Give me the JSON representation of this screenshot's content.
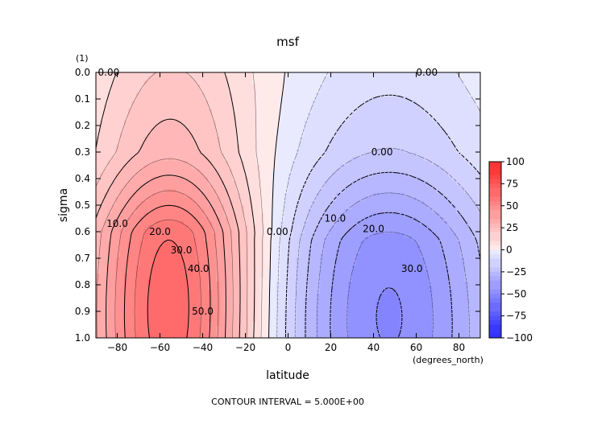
{
  "chart_data": {
    "type": "contour",
    "title": "msf",
    "xlabel": "latitude",
    "ylabel": "sigma",
    "x_units": "(degrees_north)",
    "y_units": "(1)",
    "xlim": [
      -90,
      90
    ],
    "ylim": [
      0.0,
      1.0
    ],
    "y_inverted": true,
    "x_ticks": [
      -80,
      -60,
      -40,
      -20,
      0,
      20,
      40,
      60,
      80
    ],
    "y_ticks": [
      "0.0",
      "0.1",
      "0.2",
      "0.3",
      "0.4",
      "0.5",
      "0.6",
      "0.7",
      "0.8",
      "0.9",
      "1.0"
    ],
    "footer": "CONTOUR INTERVAL = 5.000E+00",
    "contour_interval": 5.0,
    "colorbar": {
      "ticks": [
        "100",
        "75",
        "50",
        "25",
        "0",
        "-25",
        "-50",
        "-75",
        "-100"
      ],
      "positive_color": "#ff3333",
      "negative_color": "#3333ff",
      "zero_color": "#ffffff"
    },
    "cells": {
      "southern": {
        "center": [
          -55,
          0.9
        ],
        "peak": 55,
        "shape": [
          28,
          0.72,
          0.3,
          6
        ]
      },
      "northern": {
        "center": [
          47,
          0.92
        ],
        "peak": -40,
        "shape": [
          38,
          0.68,
          0.33,
          18
        ]
      },
      "upper_positive": {
        "center": [
          38,
          0.0
        ],
        "peak": 2,
        "shape": [
          85,
          0.26
        ]
      }
    },
    "contour_labels": [
      {
        "text": "0.00",
        "x": -84,
        "y": 0.0
      },
      {
        "text": "0.00",
        "x": 65,
        "y": 0.0
      },
      {
        "text": "0.00",
        "x": 44,
        "y": 0.3
      },
      {
        "text": "0.00",
        "x": -5,
        "y": 0.6
      },
      {
        "text": "10.0",
        "x": -80,
        "y": 0.57
      },
      {
        "text": "20.0",
        "x": -60,
        "y": 0.6
      },
      {
        "text": "30.0",
        "x": -50,
        "y": 0.67
      },
      {
        "text": "40.0",
        "x": -42,
        "y": 0.74
      },
      {
        "text": "50.0",
        "x": -40,
        "y": 0.9
      },
      {
        "text": "10.0",
        "x": 22,
        "y": 0.55
      },
      {
        "text": "20.0",
        "x": 40,
        "y": 0.59
      },
      {
        "text": "30.0",
        "x": 58,
        "y": 0.74
      }
    ]
  }
}
